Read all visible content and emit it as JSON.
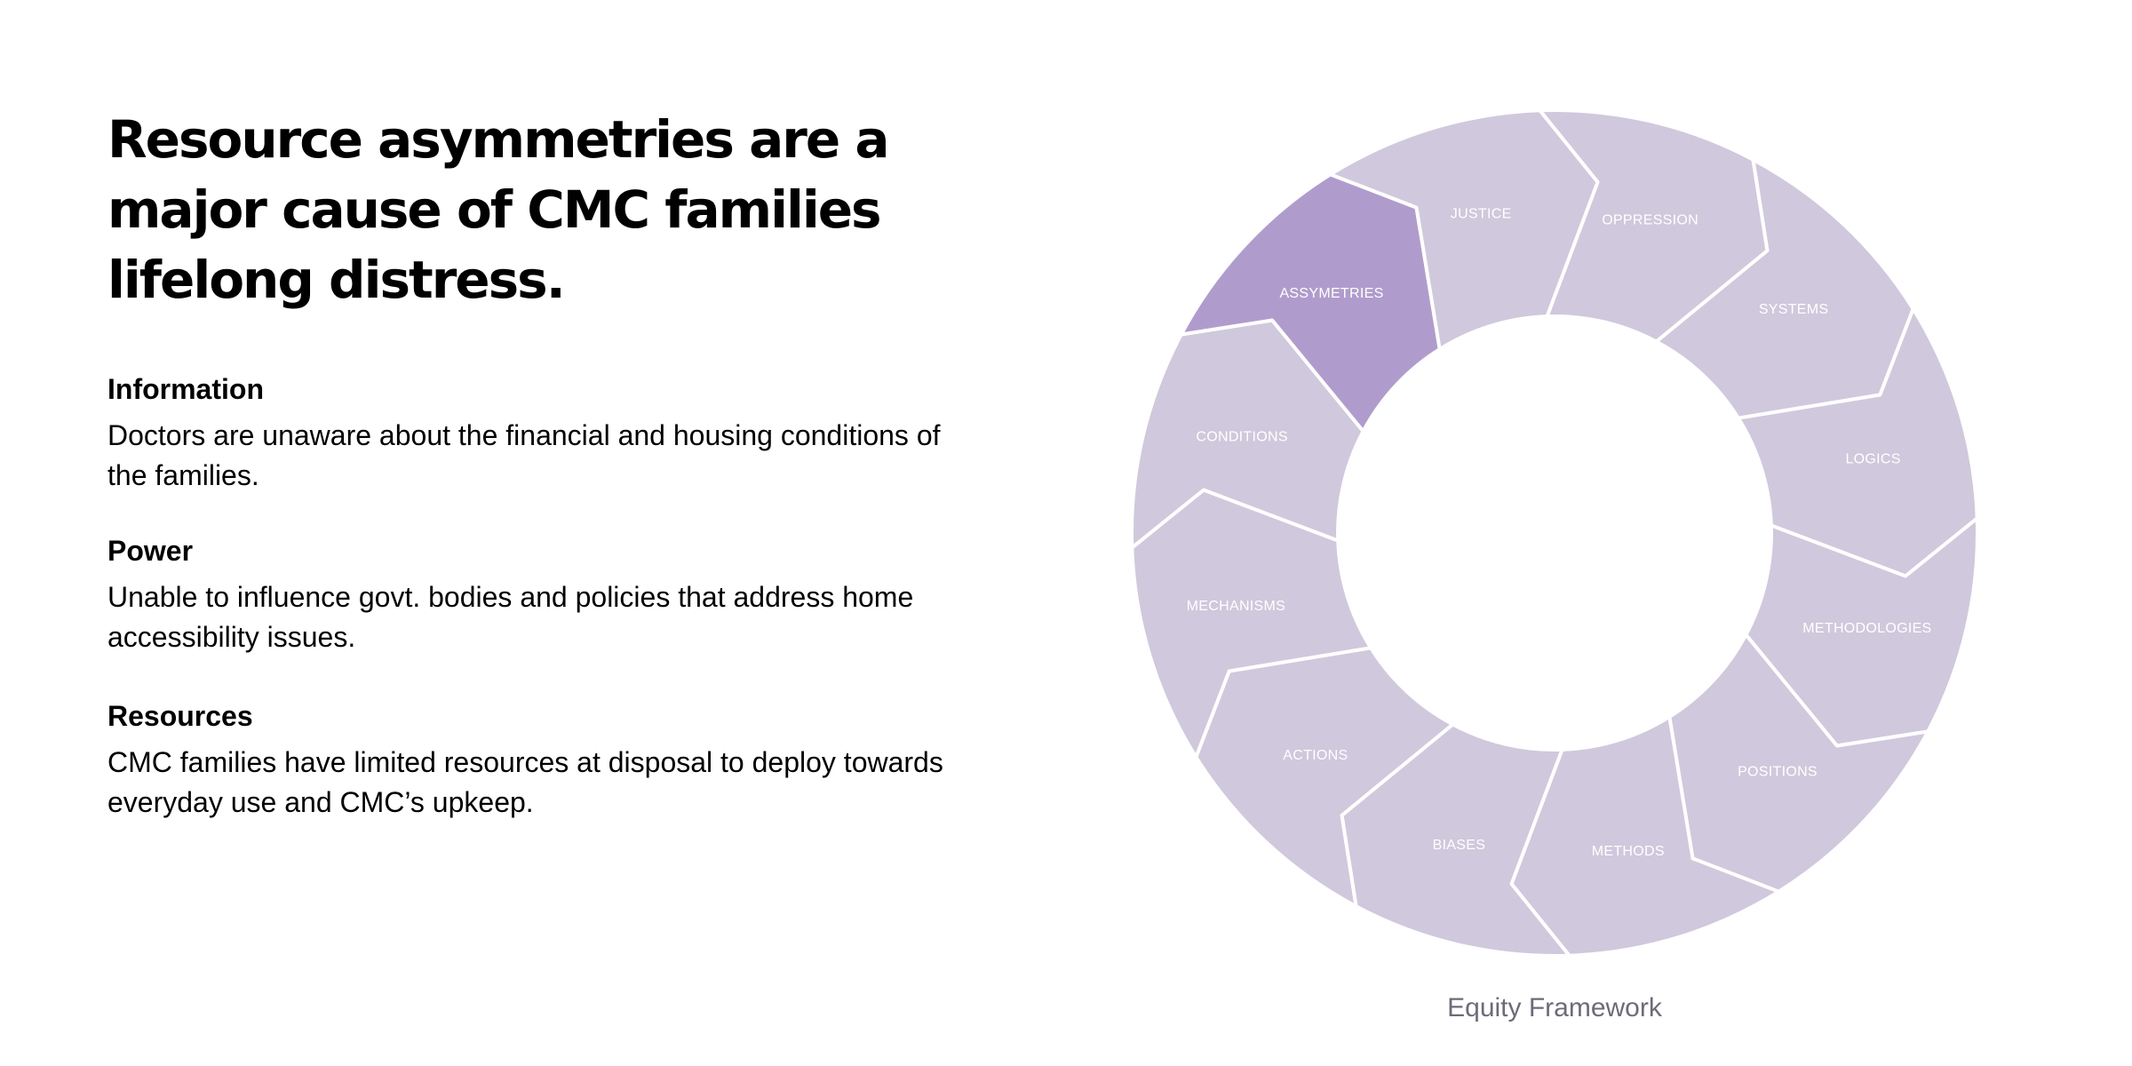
{
  "headline": "Resource asymmetries are a major cause of CMC families lifelong distress.",
  "sections": [
    {
      "title": "Information",
      "body": "Doctors are unaware about the financial and housing conditions of the families."
    },
    {
      "title": "Power",
      "body": "Unable to influence govt. bodies and policies that address home accessibility issues."
    },
    {
      "title": "Resources",
      "body": "CMC families have limited resources at disposal to deploy towards everyday use and CMC’s upkeep."
    }
  ],
  "wheel": {
    "segments": [
      "OPPRESSION",
      "SYSTEMS",
      "LOGICS",
      "METHODOLOGIES",
      "POSITIONS",
      "METHODS",
      "BIASES",
      "ACTIONS",
      "MECHANISMS",
      "CONDITIONS",
      "ASSYMETRIES",
      "JUSTICE"
    ],
    "highlighted_segment": "ASSYMETRIES",
    "colors": {
      "segment": "#d0c8dc",
      "highlight": "#b09ccc",
      "border": "#ffffff",
      "label": "#ffffff"
    }
  },
  "caption": "Equity Framework"
}
